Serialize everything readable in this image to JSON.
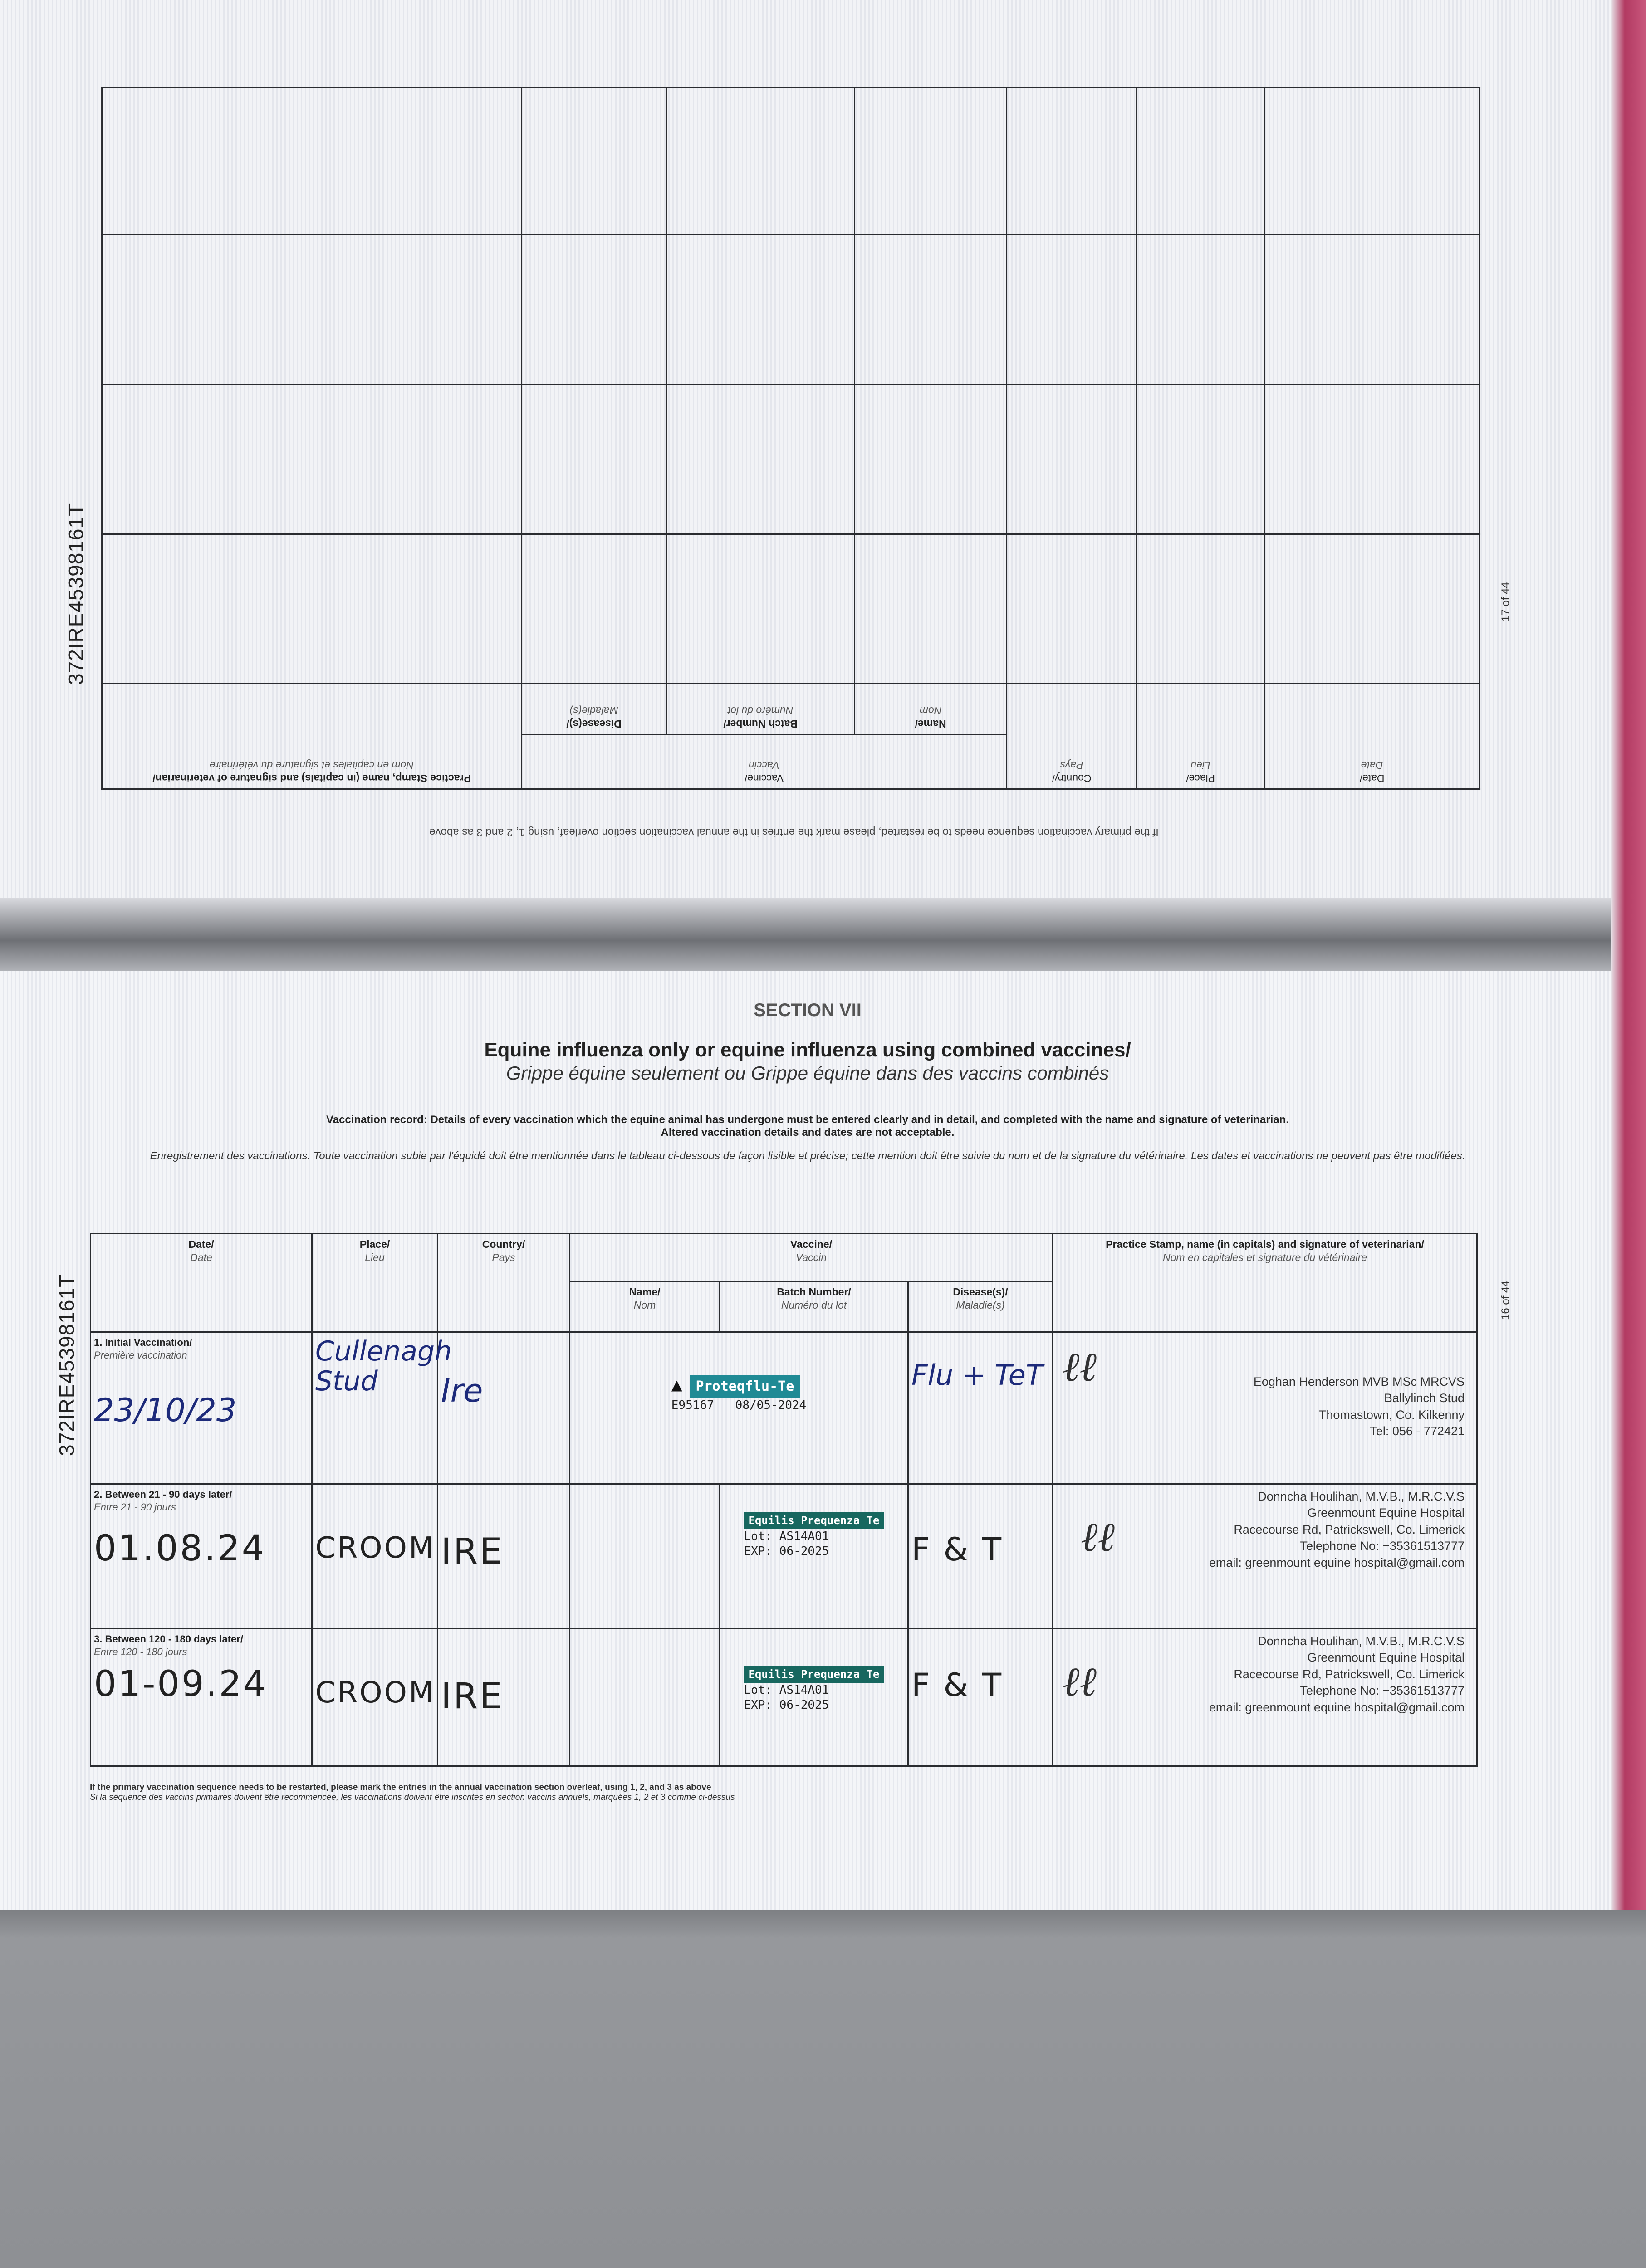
{
  "document_id": "372IRE45398161T",
  "top_page": {
    "page_number": "17 of 44",
    "headers": {
      "date": "Date/",
      "date_fr": "Date",
      "place": "Place/",
      "place_fr": "Lieu",
      "country": "Country/",
      "country_fr": "Pays",
      "vaccine": "Vaccine/",
      "vaccine_fr": "Vaccin",
      "name": "Name/",
      "name_fr": "Nom",
      "batch": "Batch Number/",
      "batch_fr": "Numéro du lot",
      "disease": "Disease(s)/",
      "disease_fr": "Maladie(s)",
      "stamp": "Practice Stamp, name (in capitals) and signature of veterinarian/",
      "stamp_fr": "Nom en capitales et signature du vétérinaire"
    },
    "note": "If the primary vaccination sequence needs to be restarted, please mark the entries in the annual vaccination section overleaf, using 1, 2 and 3 as above"
  },
  "bottom_page": {
    "page_number": "16 of 44",
    "section": "SECTION VII",
    "title": "Equine influenza only or equine influenza using combined vaccines/",
    "title_fr": "Grippe équine seulement ou Grippe équine dans des vaccins combinés",
    "intro": "Vaccination record: Details of every vaccination which the equine animal has undergone must be entered clearly and in detail, and completed with the name and signature of veterinarian.",
    "intro2": "Altered vaccination details and dates are not acceptable.",
    "intro_fr": "Enregistrement des vaccinations. Toute vaccination subie par l'équidé doit être mentionnée dans le tableau ci-dessous de façon lisible et précise; cette mention doit être suivie du nom et de la signature du vétérinaire. Les dates et vaccinations ne peuvent pas être modifiées.",
    "headers": {
      "date": "Date/",
      "date_fr": "Date",
      "place": "Place/",
      "place_fr": "Lieu",
      "country": "Country/",
      "country_fr": "Pays",
      "vaccine": "Vaccine/",
      "vaccine_fr": "Vaccin",
      "name": "Name/",
      "name_fr": "Nom",
      "batch": "Batch Number/",
      "batch_fr": "Numéro du lot",
      "disease": "Disease(s)/",
      "disease_fr": "Maladie(s)",
      "stamp": "Practice Stamp, name (in capitals) and signature of veterinarian/",
      "stamp_fr": "Nom en capitales et signature du vétérinaire"
    },
    "rows": [
      {
        "label": "1. Initial Vaccination/",
        "label_fr": "Première vaccination",
        "date": "23/10/23",
        "place": "Cullenagh Stud",
        "country": "Ire",
        "sticker_brand": "Proteqflu-Te",
        "sticker_batch": "E95167",
        "sticker_exp": "08/05-2024",
        "disease": "Flu + TeT",
        "stamp": [
          "Eoghan Henderson MVB MSc MRCVS",
          "Ballylinch Stud",
          "Thomastown, Co. Kilkenny",
          "Tel: 056 - 772421"
        ]
      },
      {
        "label": "2. Between 21 - 90 days later/",
        "label_fr": "Entre 21 - 90 jours",
        "date": "01.08.24",
        "place": "CROOM",
        "country": "IRE",
        "sticker_brand": "Equilis Prequenza Te",
        "sticker_lot": "Lot: AS14A01",
        "sticker_exp": "EXP: 06-2025",
        "disease": "F & T",
        "stamp": [
          "Donncha Houlihan, M.V.B., M.R.C.V.S",
          "Greenmount Equine Hospital",
          "Racecourse Rd, Patrickswell, Co. Limerick",
          "Telephone No: +35361513777",
          "email: greenmount equine hospital@gmail.com"
        ]
      },
      {
        "label": "3. Between 120 - 180 days later/",
        "label_fr": "Entre 120 - 180 jours",
        "date": "01-09.24",
        "place": "CROOM",
        "country": "IRE",
        "sticker_brand": "Equilis Prequenza Te",
        "sticker_lot": "Lot: AS14A01",
        "sticker_exp": "EXP: 06-2025",
        "disease": "F & T",
        "stamp": [
          "Donncha Houlihan, M.V.B., M.R.C.V.S",
          "Greenmount Equine Hospital",
          "Racecourse Rd, Patrickswell, Co. Limerick",
          "Telephone No: +35361513777",
          "email: greenmount equine hospital@gmail.com"
        ]
      }
    ],
    "footer": "If the primary vaccination sequence needs to be restarted, please mark the entries in the annual vaccination section overleaf, using 1, 2, and 3 as above",
    "footer_fr": "Si la séquence des vaccins primaires doivent être recommencée, les vaccinations doivent être inscrites en section vaccins annuels, marquées 1, 2 et 3 comme ci-dessus"
  },
  "colors": {
    "sticker_teal": "#1f8a95",
    "sticker_green": "#17675f",
    "ink_blue": "#1d2a7a",
    "cover_pink": "#b23a62"
  }
}
